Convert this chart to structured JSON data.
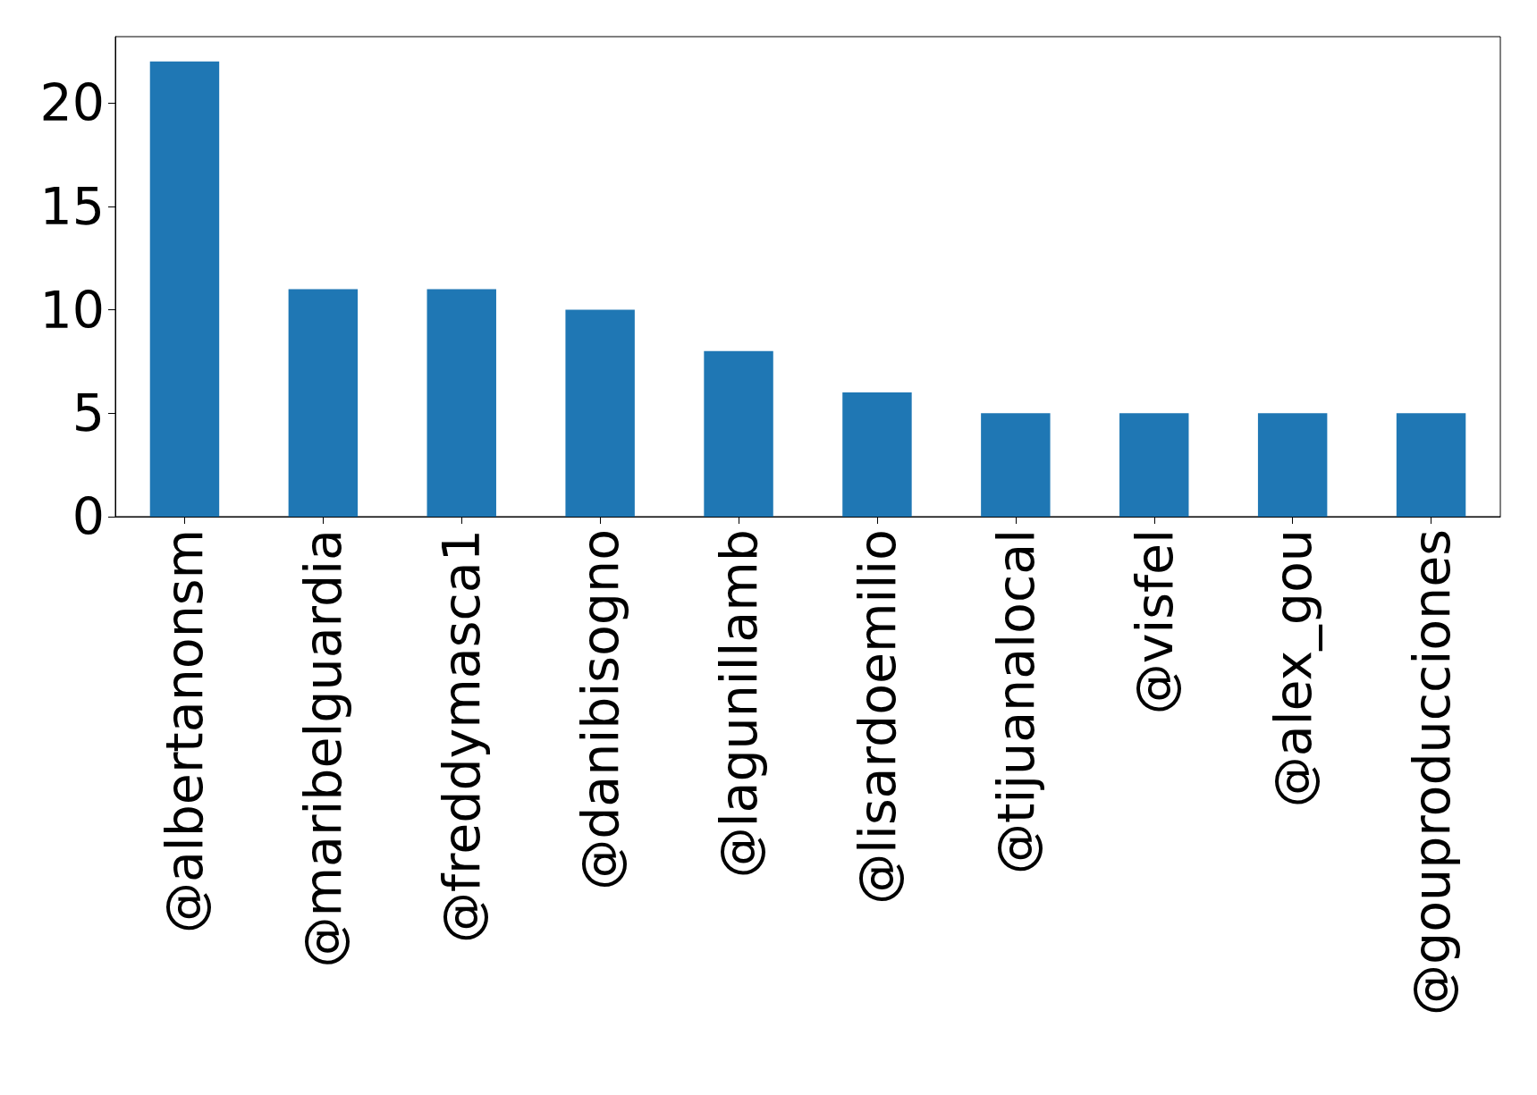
{
  "chart_data": {
    "type": "bar",
    "categories": [
      "@albertanonsm",
      "@maribelguardia",
      "@freddymasca1",
      "@danibisogno",
      "@lagunillamb",
      "@lisardoemilio",
      "@tijuanalocal",
      "@visfel",
      "@alex_gou",
      "@gouproducciones"
    ],
    "values": [
      22,
      11,
      11,
      10,
      8,
      6,
      5,
      5,
      5,
      5
    ],
    "color": "#1f77b4",
    "ylim": [
      0,
      23.2
    ],
    "yticks": [
      0,
      5,
      10,
      15,
      20
    ],
    "grid": false
  }
}
